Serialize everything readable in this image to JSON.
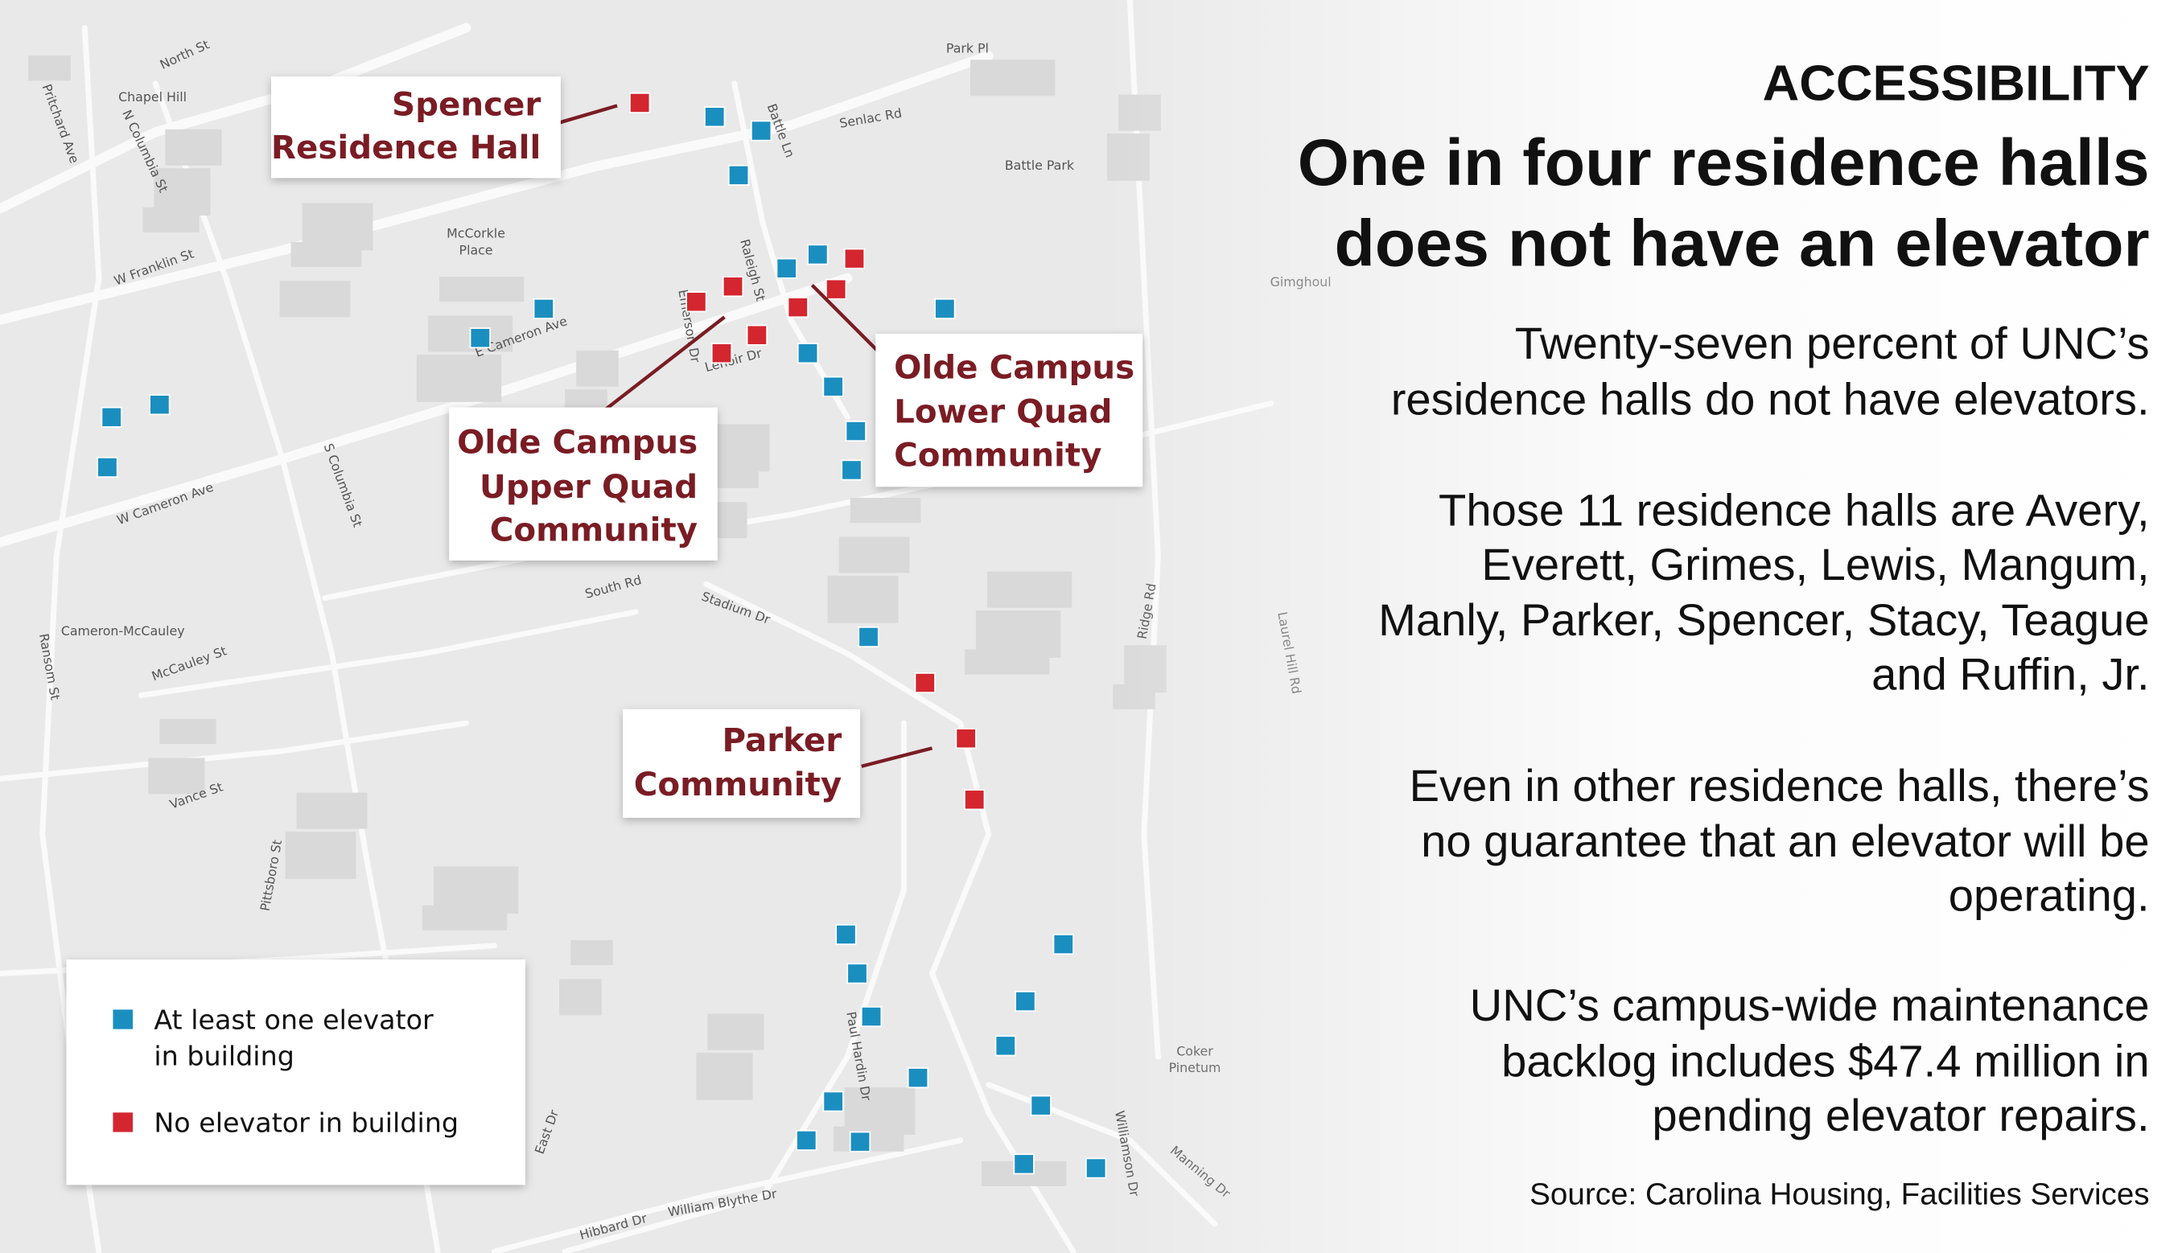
{
  "header": {
    "kicker": "ACCESSIBILITY",
    "title": [
      "One in four residence halls",
      "does not have an elevator"
    ]
  },
  "paragraphs": [
    [
      "Twenty-seven percent of UNC’s",
      "residence halls do not have elevators."
    ],
    [
      "Those 11 residence halls are Avery,",
      "Everett, Grimes, Lewis, Mangum,",
      "Manly, Parker, Spencer, Stacy, Teague",
      "and Ruffin, Jr."
    ],
    [
      "Even in other residence halls, there’s",
      "no guarantee that an elevator will be",
      "operating."
    ],
    [
      "UNC’s campus-wide maintenance",
      "backlog includes $47.4 million in",
      "pending elevator repairs."
    ]
  ],
  "source": "Source: Carolina Housing, Facilities Services",
  "legend": [
    {
      "label": [
        "At least one elevator",
        "in building"
      ],
      "color": "#1b8ec0"
    },
    {
      "label": [
        "No elevator in building"
      ],
      "color": "#d3262f"
    }
  ],
  "callouts": [
    [
      "Spencer",
      "Residence Hall"
    ],
    [
      "Olde Campus",
      "Upper Quad",
      "Community"
    ],
    [
      "Olde Campus",
      "Lower Quad",
      "Community"
    ],
    [
      "Parker",
      "Community"
    ]
  ],
  "map_labels": [
    "Chapel Hill",
    "North St",
    "Pritchard Ave",
    "N Columbia St",
    "W Franklin St",
    "E Cameron Ave",
    "W Cameron Ave",
    "S Columbia St",
    "Cameron-McCauley",
    "McCauley St",
    "Vance St",
    "Ransom St",
    "Pittsboro St",
    "South Rd",
    "Stadium Dr",
    "Ridge Rd",
    "Raleigh St",
    "Battle Ln",
    "Senlac Rd",
    "Park Pl",
    "Battle Park",
    "McCorkle",
    "Place",
    "Gimghoul",
    "Laurel Hill Rd",
    "Paul Hardin Dr",
    "Manning Dr",
    "William Blythe Dr",
    "Hibbard Dr",
    "East Dr",
    "Coker",
    "Pinetum",
    "Emerson Dr",
    "Lenoir Dr",
    "Williamson Dr"
  ]
}
